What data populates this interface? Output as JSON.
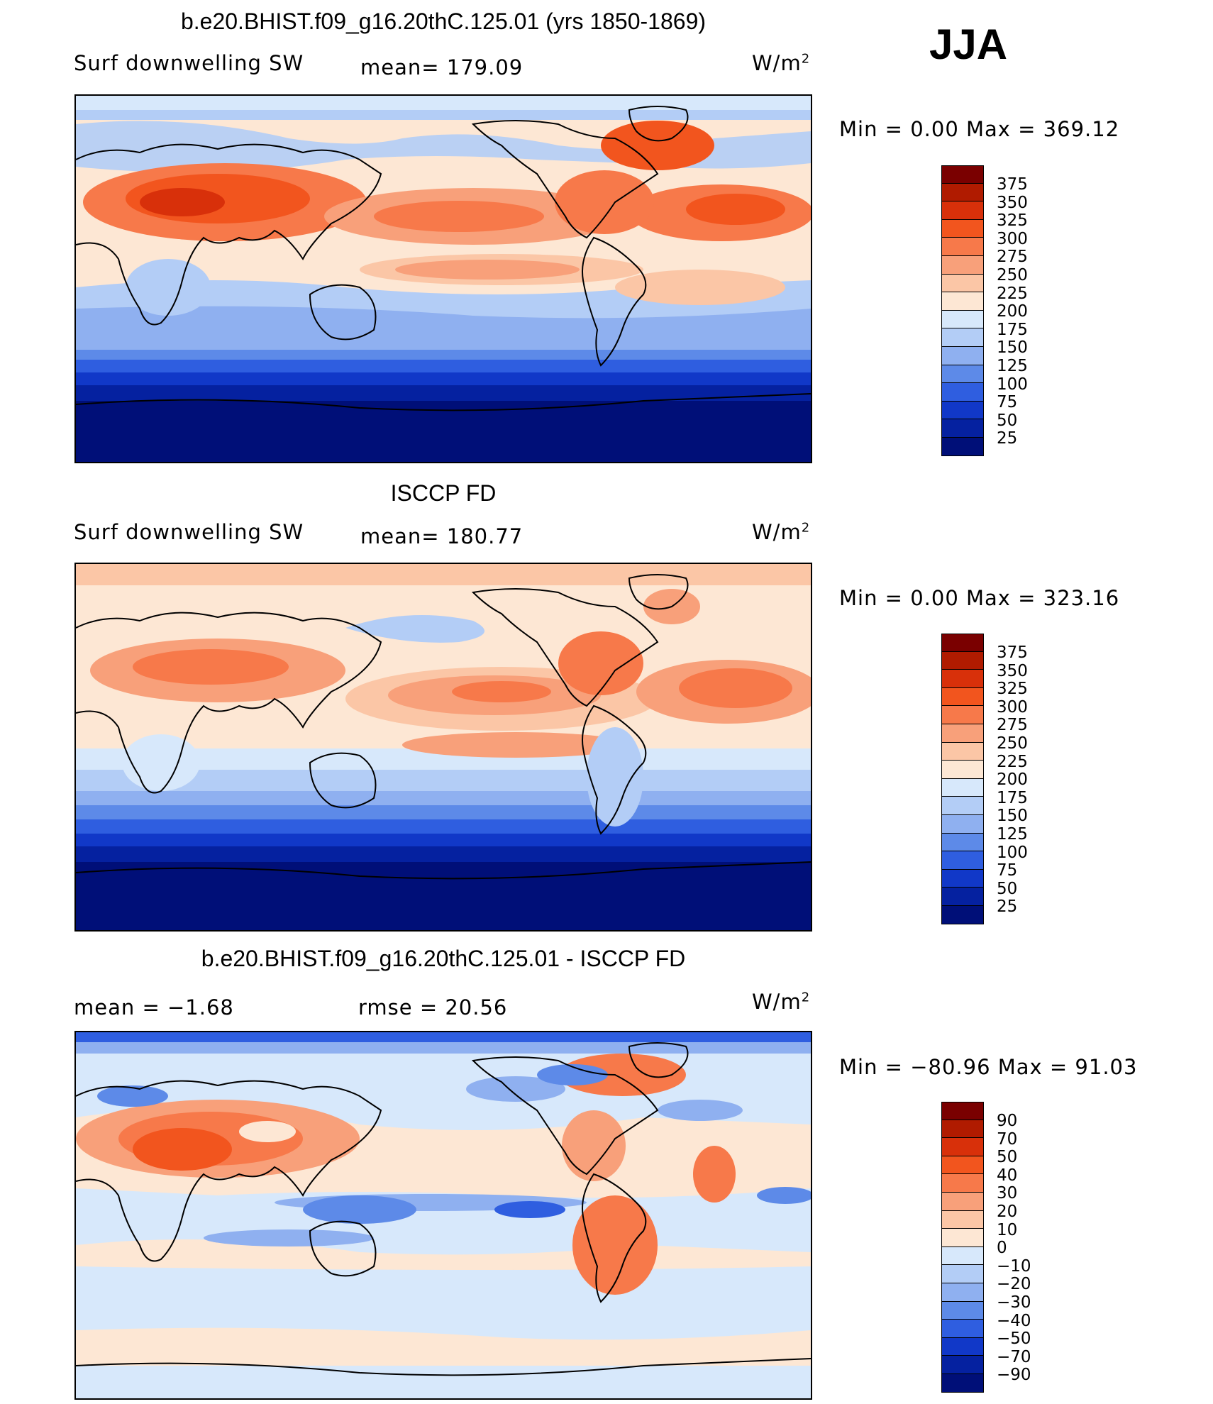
{
  "season": "JJA",
  "panels": [
    {
      "title": "b.e20.BHIST.f09_g16.20thC.125.01 (yrs 1850-1869)",
      "left_label": "Surf  downwelling  SW",
      "mid_label": "mean=  179.09",
      "units_base": "W/m",
      "units_exp": "2",
      "minmax": "Min  =      0.00  Max  =  369.12",
      "levels": [
        "375",
        "350",
        "325",
        "300",
        "275",
        "250",
        "225",
        "200",
        "175",
        "150",
        "125",
        "100",
        "75",
        "50",
        "25"
      ],
      "colors": [
        "#7a0000",
        "#b01b00",
        "#d8300a",
        "#f2551e",
        "#f7794a",
        "#f8a07a",
        "#fbc6a6",
        "#fde7d4",
        "#d7e8fb",
        "#b3cdf6",
        "#8fb0f0",
        "#5d8ae8",
        "#2f5ee0",
        "#1138c8",
        "#0521a0",
        "#000f78"
      ]
    },
    {
      "title": "ISCCP FD",
      "left_label": "Surf  downwelling  SW",
      "mid_label": "mean=  180.77",
      "units_base": "W/m",
      "units_exp": "2",
      "minmax": "Min  =      0.00  Max  =  323.16",
      "levels": [
        "375",
        "350",
        "325",
        "300",
        "275",
        "250",
        "225",
        "200",
        "175",
        "150",
        "125",
        "100",
        "75",
        "50",
        "25"
      ],
      "colors": [
        "#7a0000",
        "#b01b00",
        "#d8300a",
        "#f2551e",
        "#f7794a",
        "#f8a07a",
        "#fbc6a6",
        "#fde7d4",
        "#d7e8fb",
        "#b3cdf6",
        "#8fb0f0",
        "#5d8ae8",
        "#2f5ee0",
        "#1138c8",
        "#0521a0",
        "#000f78"
      ]
    },
    {
      "title": "b.e20.BHIST.f09_g16.20thC.125.01 - ISCCP FD",
      "left_label": "mean  =    −1.68",
      "mid_label": "rmse  =    20.56",
      "units_base": "W/m",
      "units_exp": "2",
      "minmax": "Min  =  −80.96  Max  =    91.03",
      "levels": [
        "90",
        "70",
        "50",
        "40",
        "30",
        "20",
        "10",
        "0",
        "−10",
        "−20",
        "−30",
        "−40",
        "−50",
        "−70",
        "−90"
      ],
      "colors": [
        "#7a0000",
        "#b01b00",
        "#d8300a",
        "#f2551e",
        "#f7794a",
        "#f8a07a",
        "#fbc6a6",
        "#fde7d4",
        "#d7e8fb",
        "#b3cdf6",
        "#8fb0f0",
        "#5d8ae8",
        "#2f5ee0",
        "#1138c8",
        "#0521a0",
        "#000f78"
      ]
    }
  ]
}
